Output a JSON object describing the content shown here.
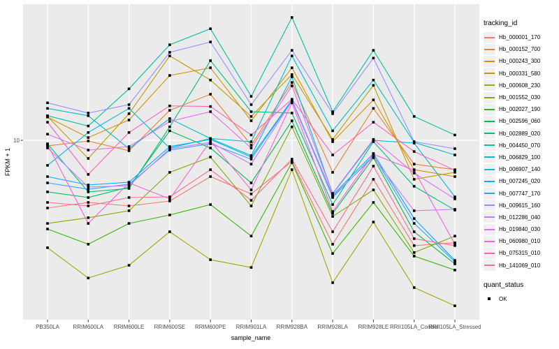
{
  "figure": {
    "y_axis": {
      "label": "FPKM + 1",
      "tick": "10"
    },
    "x_axis": {
      "label": "sample_name"
    },
    "legend": {
      "tracking_title": "tracking_id",
      "quant_title": "quant_status",
      "quant_value": "OK"
    }
  },
  "chart_data": {
    "type": "line",
    "title": "",
    "xlabel": "sample_name",
    "ylabel": "FPKM + 1",
    "y_scale": "log10",
    "y_ticks": [
      10
    ],
    "ylim": [
      1.5,
      45
    ],
    "grid": "major",
    "legend_position": "right",
    "panel_color": "#EBEBEB",
    "point_marker": "black-square",
    "categories": [
      "PB350LA",
      "RRIM600LA",
      "RRIM600LE",
      "RRIM600SE",
      "RRIM600PE",
      "RRIM901LA",
      "RRIM928BA",
      "RRIM928LA",
      "RRIM928LE",
      "RRII105LA_Control",
      "RRII105LA_Stressed"
    ],
    "series": [
      {
        "name": "Hb_000001_170",
        "color": "#F8766D",
        "values": [
          4.75,
          5.05,
          4.86,
          5.13,
          6.71,
          5.54,
          7.94,
          3.19,
          6.51,
          3.14,
          3.24
        ]
      },
      {
        "name": "Hb_000152_700",
        "color": "#EA8331",
        "values": [
          9.4,
          9.92,
          8.91,
          13.9,
          16.6,
          9.48,
          18.9,
          7.03,
          14.2,
          7.7,
          7.24
        ]
      },
      {
        "name": "Hb_000243_300",
        "color": "#D89000",
        "values": [
          12.9,
          10.3,
          12.5,
          20.4,
          22.2,
          12.4,
          22.2,
          9.85,
          15.6,
          7.24,
          6.71
        ]
      },
      {
        "name": "Hb_000331_580",
        "color": "#C09B00",
        "values": [
          13.0,
          8.19,
          13.4,
          25.3,
          19.4,
          13.0,
          20.6,
          10.1,
          18.3,
          6.51,
          7.03
        ]
      },
      {
        "name": "Hb_000608_230",
        "color": "#A3A500",
        "values": [
          3.07,
          2.2,
          2.53,
          3.66,
          2.69,
          2.47,
          7.24,
          2.09,
          4.07,
          1.98,
          1.62
        ]
      },
      {
        "name": "Hb_001552_030",
        "color": "#7CAE00",
        "values": [
          4.01,
          4.27,
          4.61,
          7.03,
          8.32,
          4.86,
          11.6,
          4.33,
          5.8,
          2.91,
          3.49
        ]
      },
      {
        "name": "Hb_002027_190",
        "color": "#39B600",
        "values": [
          3.77,
          3.19,
          4.01,
          4.4,
          4.93,
          3.49,
          7.82,
          2.88,
          5.05,
          2.8,
          2.4
        ]
      },
      {
        "name": "Hb_002596_060",
        "color": "#00BB4E",
        "values": [
          5.67,
          5.33,
          5.98,
          11.1,
          9.19,
          6.26,
          12.4,
          4.47,
          8.26,
          3.66,
          2.57
        ]
      },
      {
        "name": "Hb_002889_020",
        "color": "#00BF7D",
        "values": [
          9.62,
          5.67,
          5.89,
          11.6,
          24.0,
          13.7,
          13.5,
          4.93,
          9.85,
          6.03,
          4.64
        ]
      },
      {
        "name": "Hb_004450_070",
        "color": "#00C1A3",
        "values": [
          13.1,
          11.7,
          17.6,
          28.6,
          34.1,
          16.2,
          38.6,
          13.7,
          26.9,
          13.0,
          10.6
        ]
      },
      {
        "name": "Hb_006829_100",
        "color": "#00BFC4",
        "values": [
          14.2,
          13.1,
          9.12,
          12.7,
          10.2,
          9.85,
          25.3,
          11.1,
          19.4,
          9.77,
          8.51
        ]
      },
      {
        "name": "Hb_006907_140",
        "color": "#00BAE0",
        "values": [
          7.59,
          10.9,
          14.2,
          9.19,
          10.2,
          8.45,
          20.1,
          5.54,
          10.0,
          9.7,
          5.37
        ]
      },
      {
        "name": "Hb_007245_020",
        "color": "#00B0F6",
        "values": [
          6.71,
          6.12,
          6.31,
          9.33,
          10.1,
          8.32,
          15.6,
          5.46,
          8.65,
          4.23,
          2.67
        ]
      },
      {
        "name": "Hb_007747_170",
        "color": "#35A2FF",
        "values": [
          6.26,
          5.84,
          6.17,
          8.98,
          9.62,
          8.13,
          15.5,
          5.33,
          8.45,
          4.01,
          2.63
        ]
      },
      {
        "name": "Hb_009615_160",
        "color": "#9590FF",
        "values": [
          15.1,
          13.5,
          14.8,
          26.3,
          29.5,
          14.8,
          26.9,
          13.4,
          24.7,
          9.85,
          9.12
        ]
      },
      {
        "name": "Hb_012286_040",
        "color": "#C77CFF",
        "values": [
          9.19,
          5.98,
          6.07,
          9.12,
          9.77,
          7.7,
          15.4,
          5.41,
          8.32,
          4.61,
          4.68
        ]
      },
      {
        "name": "Hb_019840_030",
        "color": "#E76BF3",
        "values": [
          10.7,
          8.98,
          9.33,
          12.3,
          13.7,
          9.19,
          18.2,
          5.58,
          10.1,
          6.97,
          5.25
        ]
      },
      {
        "name": "Hb_060980_010",
        "color": "#FA62DB",
        "values": [
          9.55,
          4.01,
          6.26,
          5.25,
          9.92,
          5.8,
          15.1,
          4.57,
          8.58,
          7.19,
          3.19
        ]
      },
      {
        "name": "Hb_075315_010",
        "color": "#FF62BC",
        "values": [
          12.2,
          6.87,
          10.9,
          14.6,
          14.5,
          10.6,
          15.7,
          8.51,
          12.2,
          8.84,
          7.19
        ]
      },
      {
        "name": "Hb_141069_010",
        "color": "#FF6A98",
        "values": [
          5.05,
          4.86,
          5.33,
          5.37,
          7.24,
          5.17,
          8.13,
          3.66,
          7.53,
          3.39,
          3.14
        ]
      }
    ],
    "quant_status": {
      "values": [
        "OK"
      ],
      "marker": "black-square"
    }
  }
}
